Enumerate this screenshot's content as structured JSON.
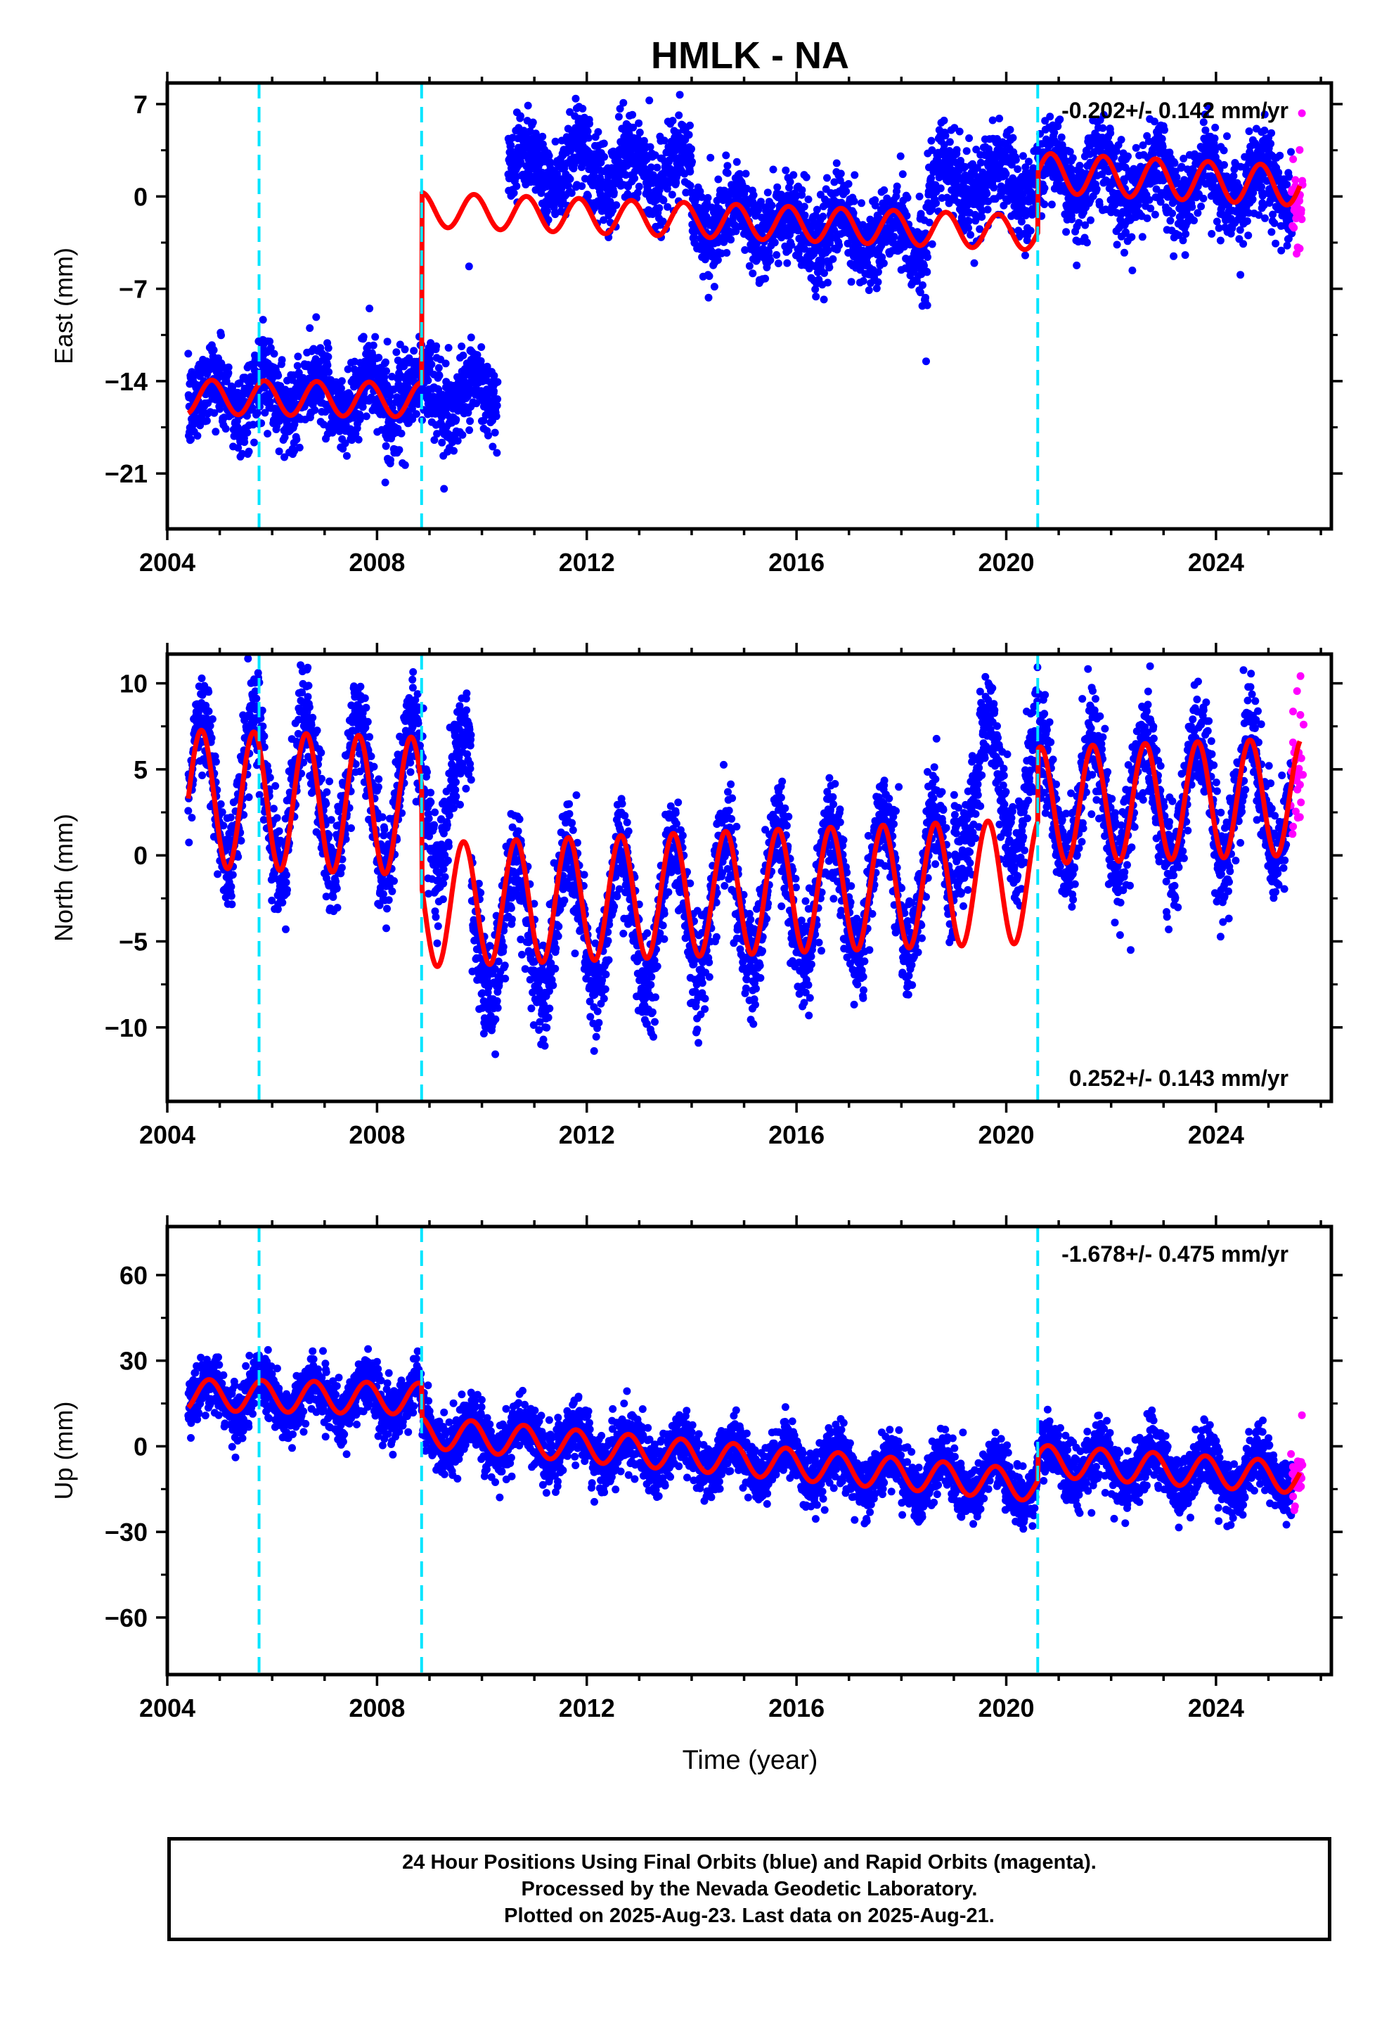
{
  "chart_data": {
    "title": "HMLK - NA",
    "xlabel": "Time (year)",
    "x_ticks": [
      2004,
      2008,
      2012,
      2016,
      2020,
      2024
    ],
    "xlim": [
      2004.0,
      2026.2
    ],
    "series_legend": [
      "Final Orbits (blue)",
      "Rapid Orbits (magenta)"
    ],
    "colors": {
      "final": "#0000ff",
      "rapid": "#ff00ff",
      "model": "#ff0000",
      "event": "#00e5ff"
    },
    "event_lines": [
      2005.75,
      2008.85,
      2020.6
    ],
    "panels": [
      {
        "name": "east",
        "type": "scatter",
        "ylabel": "East (mm)",
        "ylim": [
          -25.2,
          8.6
        ],
        "y_ticks": [
          7,
          0,
          -7,
          -14,
          -21
        ],
        "y_tick_labels": [
          "7",
          "0",
          "−7",
          "−14",
          "−21"
        ],
        "rate": "-0.202+/- 0.142 mm/yr",
        "rate_pos": "top-right",
        "data_start": 2004.4,
        "data_gap": [
          2010.3,
          2010.5
        ],
        "rapid_start": 2025.45,
        "noise": 1.6,
        "model_segments": [
          {
            "start": 2004.4,
            "end": 2008.85,
            "offset": -15.2,
            "trend": -0.05,
            "amp": 1.3,
            "phase": 0.6
          },
          {
            "start": 2008.85,
            "end": 2020.6,
            "offset": -1.0,
            "trend": -0.15,
            "amp": 1.3,
            "phase": 0.6
          },
          {
            "start": 2020.6,
            "end": 2025.6,
            "offset": 1.8,
            "trend": -0.2,
            "amp": 1.5,
            "phase": 0.6
          }
        ],
        "data_offsets": [
          {
            "start": 2004.4,
            "end": 2010.3,
            "offset": -15.0,
            "trend": 0.0
          },
          {
            "start": 2010.5,
            "end": 2014.0,
            "offset": 2.5,
            "trend": -0.2
          },
          {
            "start": 2014.0,
            "end": 2018.5,
            "offset": -1.5,
            "trend": -0.4
          },
          {
            "start": 2018.5,
            "end": 2020.6,
            "offset": 1.0,
            "trend": 0.2
          },
          {
            "start": 2020.6,
            "end": 2025.6,
            "offset": 1.5,
            "trend": -0.15
          }
        ]
      },
      {
        "name": "north",
        "type": "scatter",
        "ylabel": "North (mm)",
        "ylim": [
          -14.3,
          11.7
        ],
        "y_ticks": [
          10,
          5,
          0,
          -5,
          -10
        ],
        "y_tick_labels": [
          "10",
          "5",
          "0",
          "−5",
          "−10"
        ],
        "rate": "0.252+/- 0.143 mm/yr",
        "rate_pos": "bottom-right",
        "data_start": 2004.4,
        "data_gap": null,
        "rapid_start": 2025.45,
        "noise": 1.5,
        "model_segments": [
          {
            "start": 2004.4,
            "end": 2008.85,
            "offset": 3.3,
            "trend": -0.1,
            "amp": 4.0,
            "phase": 0.4
          },
          {
            "start": 2008.85,
            "end": 2020.6,
            "offset": -2.9,
            "trend": 0.12,
            "amp": 3.6,
            "phase": 0.4
          },
          {
            "start": 2020.6,
            "end": 2025.6,
            "offset": 2.9,
            "trend": 0.1,
            "amp": 3.4,
            "phase": 0.4
          }
        ],
        "data_offsets": [
          {
            "start": 2004.4,
            "end": 2009.8,
            "offset": 3.5,
            "trend": 0.0
          },
          {
            "start": 2009.8,
            "end": 2019.0,
            "offset": -4.5,
            "trend": 0.35
          },
          {
            "start": 2019.0,
            "end": 2020.6,
            "offset": 4.0,
            "trend": 0.0
          },
          {
            "start": 2020.6,
            "end": 2025.6,
            "offset": 2.9,
            "trend": 0.1
          }
        ]
      },
      {
        "name": "up",
        "type": "scatter",
        "ylabel": "Up (mm)",
        "ylim": [
          -80,
          77
        ],
        "y_ticks": [
          60,
          30,
          0,
          -30,
          -60
        ],
        "y_tick_labels": [
          "60",
          "30",
          "0",
          "−30",
          "−60"
        ],
        "rate": "-1.678+/- 0.475 mm/yr",
        "rate_pos": "top-right",
        "data_start": 2004.4,
        "data_gap": null,
        "rapid_start": 2025.45,
        "noise": 5.0,
        "model_segments": [
          {
            "start": 2004.4,
            "end": 2008.85,
            "offset": 18.0,
            "trend": -0.3,
            "amp": 5.5,
            "phase": 0.55
          },
          {
            "start": 2008.85,
            "end": 2020.6,
            "offset": 5.0,
            "trend": -1.6,
            "amp": 5.5,
            "phase": 0.55
          },
          {
            "start": 2020.6,
            "end": 2025.6,
            "offset": -5.0,
            "trend": -1.2,
            "amp": 5.5,
            "phase": 0.55
          }
        ],
        "data_offsets": [
          {
            "start": 2004.4,
            "end": 2008.85,
            "offset": 18.0,
            "trend": -0.3
          },
          {
            "start": 2008.85,
            "end": 2020.6,
            "offset": 5.0,
            "trend": -1.6
          },
          {
            "start": 2020.6,
            "end": 2025.6,
            "offset": -5.0,
            "trend": -1.2
          }
        ]
      }
    ]
  },
  "caption": {
    "line1": "24 Hour Positions Using Final Orbits (blue) and Rapid Orbits (magenta).",
    "line2": "Processed by the Nevada Geodetic Laboratory.",
    "line3": "Plotted on 2025-Aug-23. Last data on 2025-Aug-21."
  }
}
